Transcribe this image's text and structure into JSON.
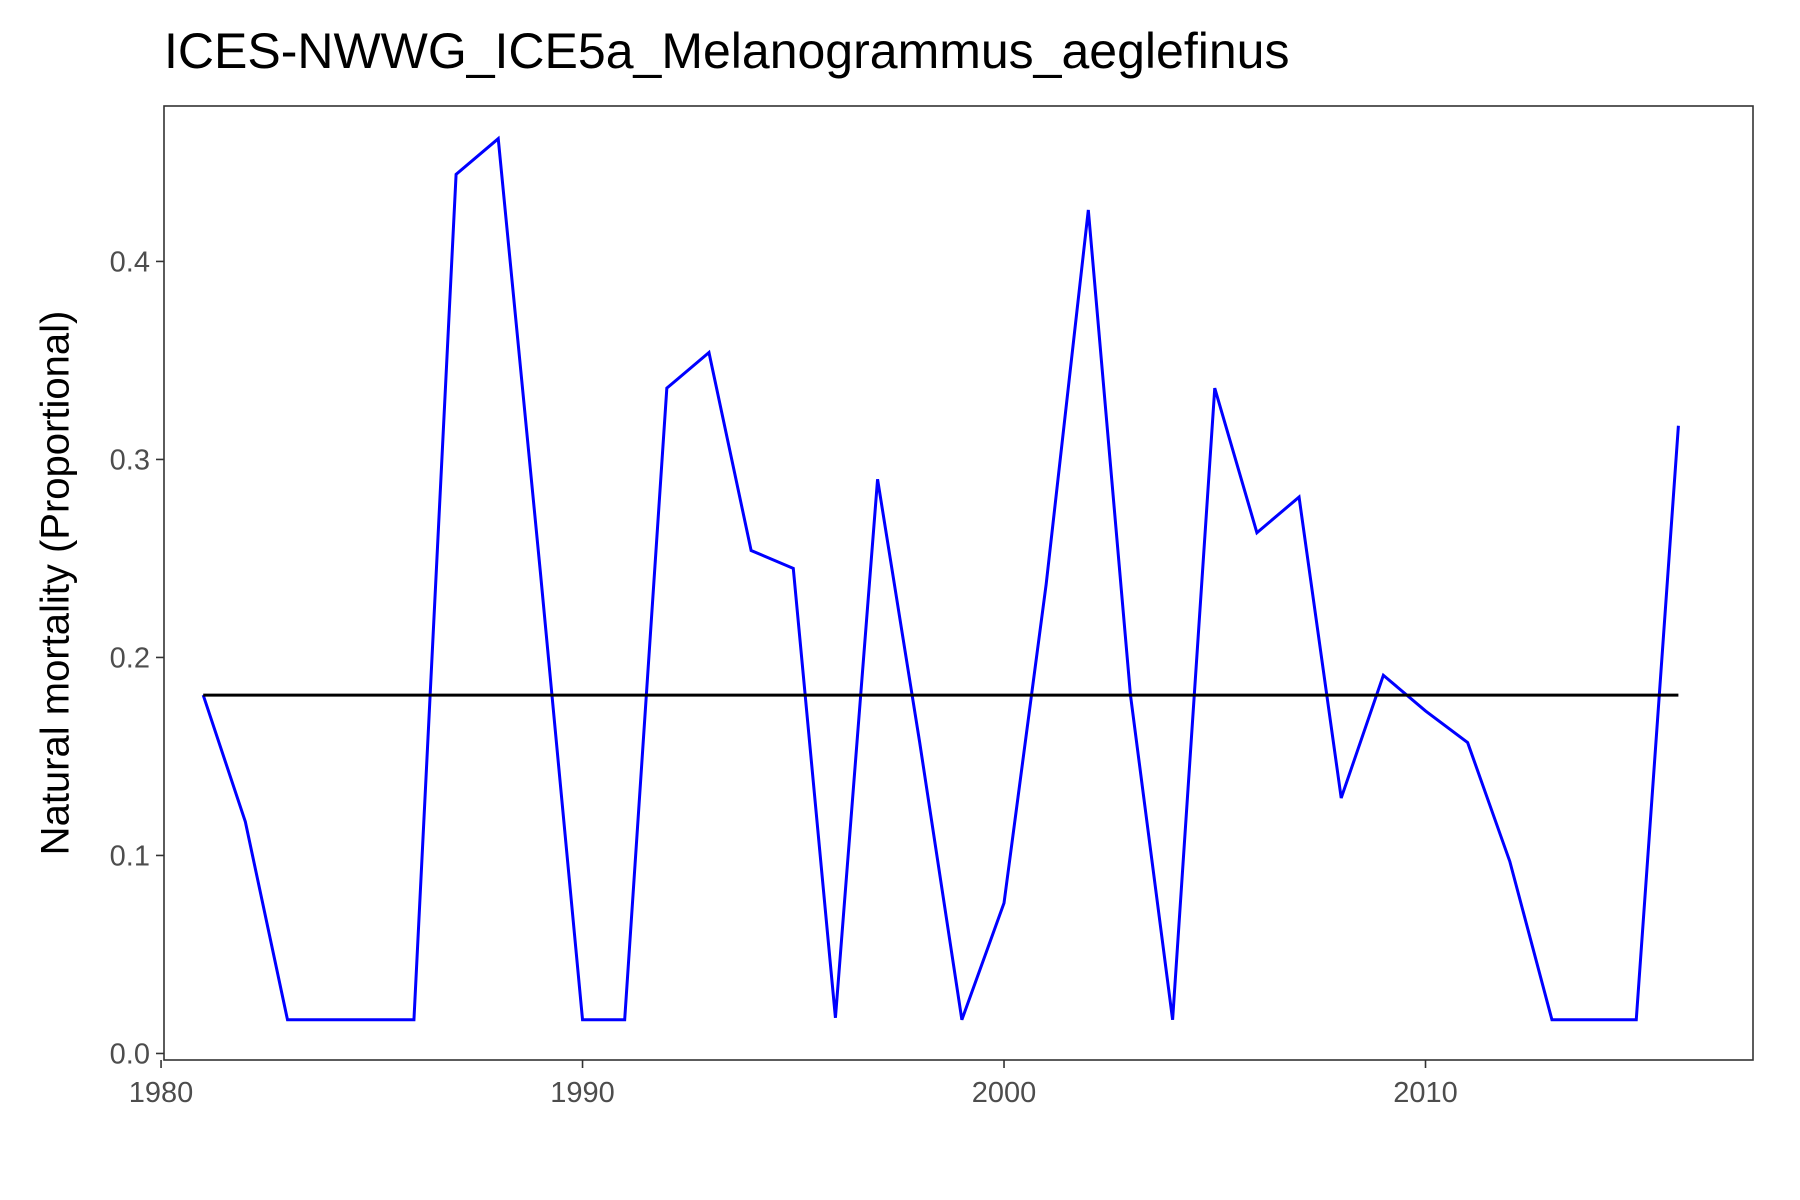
{
  "chart_data": {
    "type": "line",
    "title": "ICES-NWWG_ICE5a_Melanogrammus_aeglefinus",
    "xlabel": "",
    "ylabel": "Natural mortality (Proportional)",
    "xlim": [
      1980.07,
      2017.77
    ],
    "ylim": [
      -0.0033,
      0.4785
    ],
    "x_ticks": [
      1980,
      1990,
      2000,
      2010
    ],
    "y_ticks": [
      0.0,
      0.1,
      0.2,
      0.3,
      0.4
    ],
    "y_tick_labels": [
      "0.0",
      "0.1",
      "0.2",
      "0.3",
      "0.4"
    ],
    "x_tick_labels": [
      "1980",
      "1990",
      "2000",
      "2010"
    ],
    "grid": false,
    "series": [
      {
        "color": "#0000FF",
        "x": [
          1981,
          1982,
          1983,
          1984,
          1985,
          1986,
          1987,
          1988,
          1989,
          1990,
          1991,
          1992,
          1993,
          1994,
          1995,
          1996,
          1997,
          1998,
          1999,
          2000,
          2001,
          2002,
          2003,
          2004,
          2005,
          2006,
          2007,
          2008,
          2009,
          2010,
          2011,
          2012,
          2013,
          2014,
          2015,
          2016
        ],
        "y": [
          0.181,
          0.117,
          0.017,
          0.017,
          0.017,
          0.017,
          0.444,
          0.462,
          0.243,
          0.017,
          0.017,
          0.336,
          0.354,
          0.254,
          0.245,
          0.018,
          0.29,
          0.157,
          0.017,
          0.076,
          0.237,
          0.426,
          0.181,
          0.017,
          0.336,
          0.263,
          0.281,
          0.129,
          0.191,
          0.173,
          0.157,
          0.097,
          0.017,
          0.017,
          0.017,
          0.317
        ]
      },
      {
        "color": "#000000",
        "x": [
          1981,
          2016
        ],
        "y": [
          0.181,
          0.181
        ]
      }
    ]
  }
}
